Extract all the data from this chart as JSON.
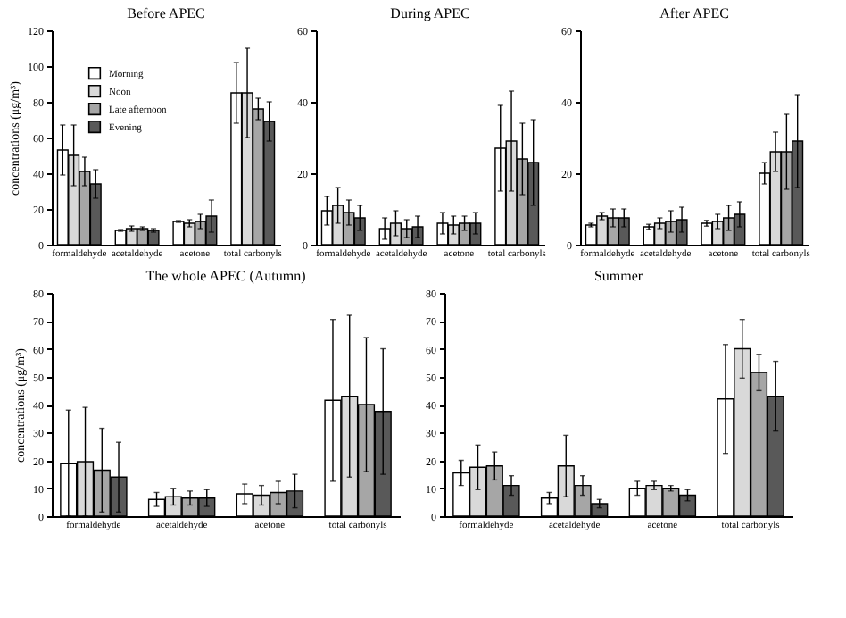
{
  "chart_data": [
    {
      "type": "bar",
      "title": "Before APEC",
      "ylabel": "concentrations (μg/m³)",
      "categories": [
        "formaldehyde",
        "acetaldehyde",
        "acetone",
        "total carbonyls"
      ],
      "ylim": [
        0,
        120
      ],
      "yticks": [
        0,
        20,
        40,
        60,
        80,
        100,
        120
      ],
      "grid": false,
      "legend": "top left",
      "series": [
        {
          "name": "Morning",
          "color": "#ffffff",
          "values": [
            53,
            8,
            13,
            85
          ],
          "errors": [
            14,
            0.5,
            0.5,
            17
          ]
        },
        {
          "name": "Noon",
          "color": "#d9d9d9",
          "values": [
            50,
            9,
            12,
            85
          ],
          "errors": [
            17,
            1.5,
            2,
            25
          ]
        },
        {
          "name": "Late afternoon",
          "color": "#a6a6a6",
          "values": [
            41,
            9,
            13,
            76
          ],
          "errors": [
            8,
            1,
            4,
            6
          ]
        },
        {
          "name": "Evening",
          "color": "#595959",
          "values": [
            34,
            8,
            16,
            69
          ],
          "errors": [
            8,
            1,
            9,
            11
          ]
        }
      ]
    },
    {
      "type": "bar",
      "title": "During APEC",
      "categories": [
        "formaldehyde",
        "acetaldehyde",
        "acetone",
        "total carbonyls"
      ],
      "ylim": [
        0,
        60
      ],
      "yticks": [
        0,
        20,
        40,
        60
      ],
      "grid": false,
      "series": [
        {
          "color": "#ffffff",
          "values": [
            9.5,
            4.5,
            6,
            27
          ],
          "errors": [
            4,
            3,
            3,
            12
          ]
        },
        {
          "color": "#d9d9d9",
          "values": [
            11,
            6,
            5.5,
            29
          ],
          "errors": [
            5,
            3.5,
            2.5,
            14
          ]
        },
        {
          "color": "#a6a6a6",
          "values": [
            9,
            4.5,
            6,
            24
          ],
          "errors": [
            3.5,
            2.5,
            2,
            10
          ]
        },
        {
          "color": "#595959",
          "values": [
            7.5,
            5,
            6,
            23
          ],
          "errors": [
            3.5,
            3,
            3,
            12
          ]
        }
      ]
    },
    {
      "type": "bar",
      "title": "After APEC",
      "categories": [
        "formaldehyde",
        "acetaldehyde",
        "acetone",
        "total carbonyls"
      ],
      "ylim": [
        0,
        60
      ],
      "yticks": [
        0,
        20,
        40,
        60
      ],
      "grid": false,
      "series": [
        {
          "color": "#ffffff",
          "values": [
            5.5,
            5,
            6,
            20
          ],
          "errors": [
            0.5,
            0.7,
            0.8,
            3
          ]
        },
        {
          "color": "#d9d9d9",
          "values": [
            8,
            6,
            6.5,
            26
          ],
          "errors": [
            1,
            1.5,
            2,
            5.5
          ]
        },
        {
          "color": "#a6a6a6",
          "values": [
            7.5,
            6.5,
            7.5,
            26
          ],
          "errors": [
            2.5,
            3,
            3.5,
            10.5
          ]
        },
        {
          "color": "#595959",
          "values": [
            7.5,
            7,
            8.5,
            29
          ],
          "errors": [
            2.5,
            3.5,
            3.5,
            13
          ]
        }
      ]
    },
    {
      "type": "bar",
      "title": "The whole APEC (Autumn)",
      "ylabel": "concentrations (μg/m³)",
      "categories": [
        "formaldehyde",
        "acetaldehyde",
        "acetone",
        "total carbonyls"
      ],
      "ylim": [
        0,
        80
      ],
      "yticks": [
        0,
        10,
        20,
        30,
        40,
        50,
        60,
        70,
        80
      ],
      "grid": false,
      "series": [
        {
          "color": "#ffffff",
          "values": [
            19,
            6,
            8,
            41.5
          ],
          "errors": [
            19,
            2.5,
            3.5,
            29
          ]
        },
        {
          "color": "#d9d9d9",
          "values": [
            19.5,
            7,
            7.5,
            43
          ],
          "errors": [
            19.5,
            3,
            3.5,
            29
          ]
        },
        {
          "color": "#a6a6a6",
          "values": [
            16.5,
            6.5,
            8.5,
            40
          ],
          "errors": [
            15,
            2.5,
            4,
            24
          ]
        },
        {
          "color": "#595959",
          "values": [
            14,
            6.5,
            9,
            37.5
          ],
          "errors": [
            12.5,
            3,
            6,
            22.5
          ]
        }
      ]
    },
    {
      "type": "bar",
      "title": "Summer",
      "categories": [
        "formaldehyde",
        "acetaldehyde",
        "acetone",
        "total carbonyls"
      ],
      "ylim": [
        0,
        80
      ],
      "yticks": [
        0,
        10,
        20,
        30,
        40,
        50,
        60,
        70,
        80
      ],
      "grid": false,
      "series": [
        {
          "color": "#ffffff",
          "values": [
            15.5,
            6.5,
            10,
            42
          ],
          "errors": [
            4.5,
            2,
            2.5,
            19.5
          ]
        },
        {
          "color": "#d9d9d9",
          "values": [
            17.5,
            18,
            11,
            60
          ],
          "errors": [
            8,
            11,
            1.5,
            10.5
          ]
        },
        {
          "color": "#a6a6a6",
          "values": [
            18,
            11,
            10,
            51.5
          ],
          "errors": [
            5,
            3.5,
            1,
            6.5
          ]
        },
        {
          "color": "#595959",
          "values": [
            11,
            4.5,
            7.5,
            43
          ],
          "errors": [
            3.5,
            1.5,
            2,
            12.5
          ]
        }
      ]
    }
  ]
}
